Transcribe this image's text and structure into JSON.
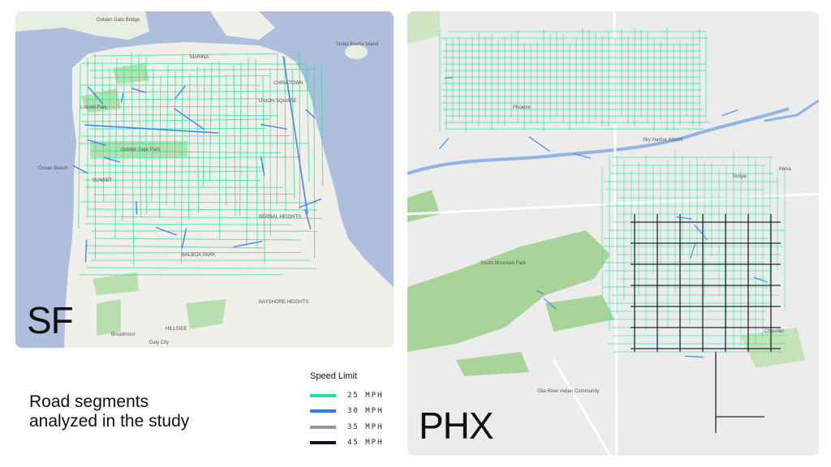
{
  "sf": {
    "label": "SF",
    "place_labels": [
      "Golden Gate Bridge",
      "MARINA",
      "UNION SQUARE",
      "CHINATOWN",
      "Lincoln Park",
      "Ocean Beach",
      "Golden Gate Park",
      "SUNSET",
      "BERNAL HEIGHTS",
      "BALBOA PARK",
      "BAYSHORE HEIGHTS",
      "Daly City",
      "Broadmoor",
      "HILLSIDE",
      "Yerba Buena Island"
    ]
  },
  "phx": {
    "label": "PHX",
    "place_labels": [
      "Phoenix",
      "Tempe",
      "Mesa",
      "Chandler",
      "Sky Harbor Airport",
      "South Mountain Park",
      "Gila River Indian Community"
    ]
  },
  "caption": {
    "line1": "Road segments",
    "line2": "analyzed in the study"
  },
  "legend": {
    "title": "Speed Limit",
    "items": [
      {
        "label": "25  MPH",
        "color": "#1fe39a"
      },
      {
        "label": "30  MPH",
        "color": "#2f7cf0"
      },
      {
        "label": "35  MPH",
        "color": "#8e9aa6"
      },
      {
        "label": "45  MPH",
        "color": "#10141f"
      }
    ]
  }
}
